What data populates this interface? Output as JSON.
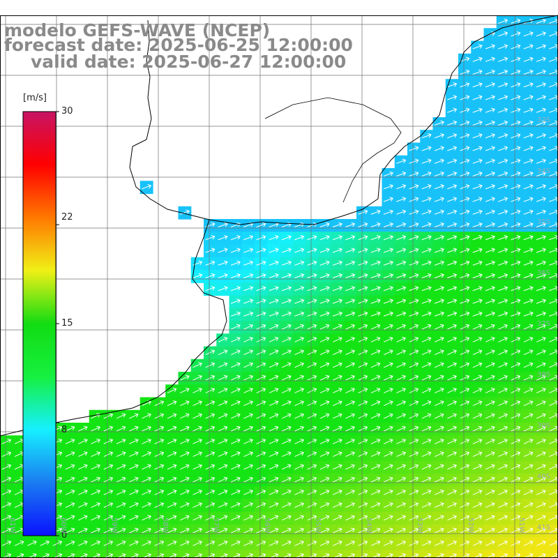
{
  "title": {
    "model": "modelo GEFS-WAVE (NCEP)",
    "forecast": "forecast date: 2025-06-25 12:00:00",
    "valid": "valid date: 2025-06-27 12:00:00"
  },
  "colorbar": {
    "unit": "[m/s]",
    "ticks": [
      "30",
      "22",
      "15",
      "8",
      "0"
    ],
    "tick_values": [
      30,
      22,
      15,
      8,
      0
    ],
    "min": 0,
    "max": 30,
    "colors": [
      "#0a12ff",
      "#1a7cf0",
      "#16f0ff",
      "#16f040",
      "#12dc12",
      "#f0f016",
      "#ff7800",
      "#ff0000",
      "#c81464"
    ]
  },
  "lat_labels": [
    "33S",
    "34S",
    "35S",
    "36S",
    "37S",
    "38S",
    "39S",
    "40S",
    "41S"
  ],
  "lon_labels": [
    "61W",
    "60W",
    "59W",
    "58W",
    "57W",
    "56W",
    "55W",
    "54W",
    "53W",
    "52W",
    "51W"
  ],
  "map_extent": {
    "lon": [
      -61.2,
      -50.2
    ],
    "lat": [
      -41.5,
      -31.3
    ]
  },
  "colors": {
    "ocean_low": "#1a7cf0",
    "ocean_mid": "#16f0ff",
    "ocean_high": "#14e414",
    "ocean_peak": "#f0e614",
    "grid": "#707070",
    "coast": "#000000",
    "arrow": "#ffffff"
  },
  "wind_direction": "from southwest"
}
